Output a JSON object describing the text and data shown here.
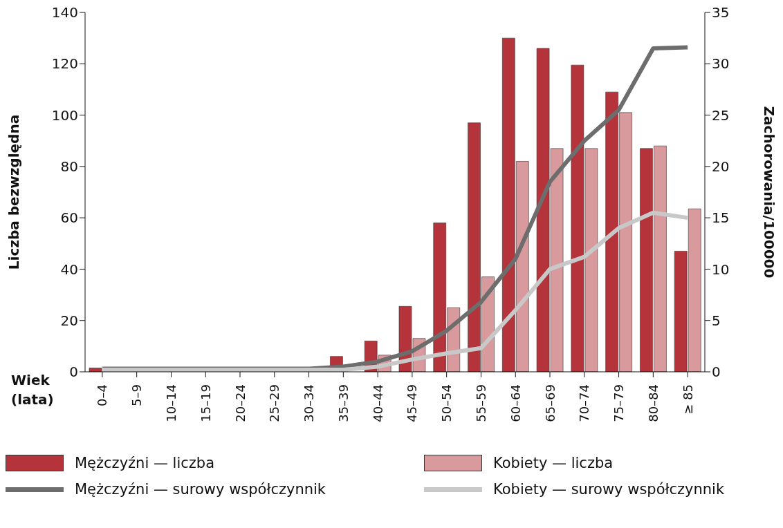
{
  "chart_data": {
    "type": "bar",
    "xlabel": "Wiek (lata)",
    "ylabel": "Liczba bezwzględna",
    "y2label": "Zachorowania/100000",
    "categories": [
      "0–4",
      "5–9",
      "10–14",
      "15–19",
      "20–24",
      "25–29",
      "30–34",
      "35–39",
      "40–44",
      "45–49",
      "50–54",
      "55–59",
      "60–64",
      "65–69",
      "70–74",
      "75–79",
      "80–84",
      "≥ 85"
    ],
    "series": [
      {
        "name": "Mężczyźni — liczba",
        "color": "#b5333b",
        "values": [
          1.5,
          0,
          0,
          0,
          0,
          0,
          0,
          6,
          12,
          25.5,
          58,
          97,
          130,
          126,
          119.5,
          109,
          87,
          47
        ]
      },
      {
        "name": "Kobiety — liczba",
        "color": "#d99a9d",
        "values": [
          0,
          0,
          0,
          0,
          0,
          0,
          0,
          0,
          6.5,
          13,
          25,
          37,
          82,
          87,
          87,
          101,
          88,
          63.5
        ]
      },
      {
        "name": "Mężczyźni — surowy współczynnik",
        "type": "line",
        "axis": "y2",
        "color": "#6d6d6d",
        "values": [
          0.3,
          0.3,
          0.3,
          0.3,
          0.3,
          0.3,
          0.3,
          0.5,
          1,
          2,
          4,
          6.8,
          11,
          18.5,
          22.5,
          25.5,
          31.5,
          31.6
        ]
      },
      {
        "name": "Kobiety — surowy współczynnik",
        "type": "line",
        "axis": "y2",
        "color": "#c8c8c8",
        "values": [
          0.2,
          0.2,
          0.2,
          0.2,
          0.2,
          0.2,
          0.2,
          0.2,
          0.5,
          1.2,
          1.8,
          2.3,
          6,
          10,
          11.2,
          14,
          15.5,
          15
        ]
      }
    ],
    "ylim": [
      0,
      140
    ],
    "yticks": [
      0,
      20,
      40,
      60,
      80,
      100,
      120,
      140
    ],
    "y2lim": [
      0,
      35
    ],
    "y2ticks": [
      0,
      5,
      10,
      15,
      20,
      25,
      30,
      35
    ],
    "grid": false,
    "legend": "bottom",
    "marker": "none",
    "line_style": "solid"
  }
}
